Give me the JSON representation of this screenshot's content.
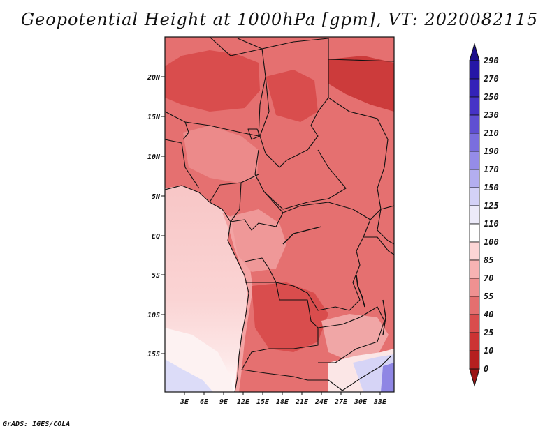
{
  "title": "Geopotential Height at 1000hPa [gpm], VT: 2020082115",
  "credit": "GrADS: IGES/COLA",
  "map": {
    "variable": "Geopotential Height",
    "level": "1000hPa",
    "units": "gpm",
    "valid_time": "2020082115",
    "lon_labels": [
      "3E",
      "6E",
      "9E",
      "12E",
      "15E",
      "18E",
      "21E",
      "24E",
      "27E",
      "30E",
      "33E"
    ],
    "lat_labels": [
      "20N",
      "15N",
      "10N",
      "5N",
      "EQ",
      "5S",
      "10S",
      "15S"
    ]
  },
  "colorbar": {
    "levels": [
      "290",
      "270",
      "250",
      "230",
      "210",
      "190",
      "170",
      "150",
      "125",
      "110",
      "100",
      "85",
      "70",
      "55",
      "40",
      "25",
      "10",
      "0"
    ],
    "colors": [
      "#1a0d8c",
      "#2516a6",
      "#3322b8",
      "#4633c6",
      "#5f4fd2",
      "#7a6ede",
      "#958ce8",
      "#b3aef0",
      "#d3d1f7",
      "#eceaf9",
      "#ffffff",
      "#fcd5d5",
      "#f7b3b3",
      "#ef9191",
      "#e46f6f",
      "#d94d4d",
      "#cc3333",
      "#b51f1f",
      "#9c1515"
    ],
    "top_color": "#1a0d8c",
    "bottom_color": "#9c1515"
  }
}
